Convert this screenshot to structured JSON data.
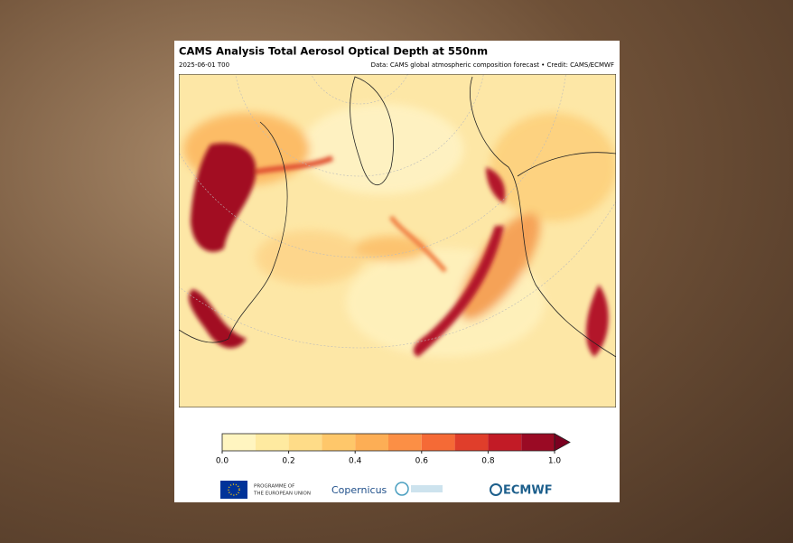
{
  "header": {
    "title": "CAMS Analysis Total Aerosol Optical Depth at 550nm",
    "date": "2025-06-01 T00",
    "credit": "Data: CAMS global atmospheric composition forecast • Credit: CAMS/ECMWF"
  },
  "colorbar": {
    "bounds": [
      0,
      0.1,
      0.2,
      0.3,
      0.4,
      0.5,
      0.6,
      0.7,
      0.8,
      0.9,
      1.0
    ],
    "colors": [
      "#fff5c0",
      "#feeaa0",
      "#fedc88",
      "#fec76a",
      "#fdae55",
      "#fc8f45",
      "#f56a36",
      "#e03e2b",
      "#c21b26",
      "#9a0a24"
    ],
    "extend_color": "#7a0020",
    "ticks": [
      {
        "value": 0,
        "label": "0.0"
      },
      {
        "value": 0.2,
        "label": "0.2"
      },
      {
        "value": 0.4,
        "label": "0.4"
      },
      {
        "value": 0.6,
        "label": "0.6"
      },
      {
        "value": 0.8,
        "label": "0.8"
      },
      {
        "value": 1.0,
        "label": "1.0"
      }
    ]
  },
  "logos": {
    "eu_line1": "PROGRAMME OF",
    "eu_line2": "THE EUROPEAN UNION",
    "copernicus": "Copernicus",
    "ecmwf": "ECMWF"
  }
}
